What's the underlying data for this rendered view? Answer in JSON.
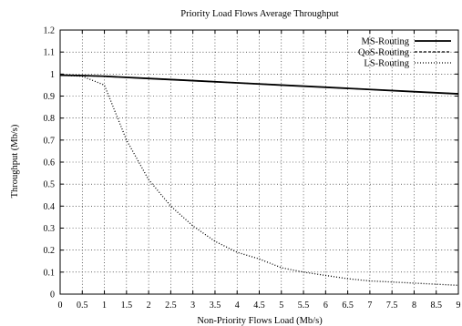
{
  "chart_data": {
    "type": "line",
    "title": "Priority Load Flows Average Throughput",
    "xlabel": "Non-Priority Flows Load  (Mb/s)",
    "ylabel": "Throughput (Mb/s)",
    "xlim": [
      0,
      9
    ],
    "ylim": [
      0,
      1.2
    ],
    "xticks": [
      "0",
      "0.5",
      "1",
      "1.5",
      "2",
      "2.5",
      "3",
      "3.5",
      "4",
      "4.5",
      "5",
      "5.5",
      "6",
      "6.5",
      "7",
      "7.5",
      "8",
      "8.5",
      "9"
    ],
    "yticks": [
      "0",
      "0.1",
      "0.2",
      "0.3",
      "0.4",
      "0.5",
      "0.6",
      "0.7",
      "0.8",
      "0.9",
      "1",
      "1.1",
      "1.2"
    ],
    "grid": true,
    "legend_position": "top-right",
    "series": [
      {
        "name": "MS-Routing",
        "style": "solid",
        "x": [
          0,
          0.5,
          1,
          2,
          3,
          4,
          5,
          6,
          7,
          8,
          9
        ],
        "y": [
          0.995,
          0.993,
          0.99,
          0.98,
          0.97,
          0.96,
          0.95,
          0.94,
          0.93,
          0.92,
          0.91
        ]
      },
      {
        "name": "QoS-Routing",
        "style": "dashed",
        "x": [
          0,
          0.5,
          1,
          2,
          3,
          4,
          5,
          6,
          7,
          8,
          9
        ],
        "y": [
          0.995,
          0.993,
          0.99,
          0.98,
          0.97,
          0.96,
          0.95,
          0.94,
          0.93,
          0.92,
          0.91
        ]
      },
      {
        "name": "LS-Routing",
        "style": "dotted",
        "x": [
          0,
          0.5,
          0.75,
          1,
          1.5,
          2,
          2.5,
          3,
          3.5,
          4,
          4.5,
          5,
          5.5,
          6,
          6.5,
          7,
          7.5,
          8,
          8.5,
          9
        ],
        "y": [
          0.995,
          0.99,
          0.97,
          0.95,
          0.7,
          0.52,
          0.4,
          0.31,
          0.24,
          0.19,
          0.16,
          0.12,
          0.1,
          0.085,
          0.07,
          0.06,
          0.055,
          0.05,
          0.045,
          0.04
        ]
      }
    ]
  }
}
